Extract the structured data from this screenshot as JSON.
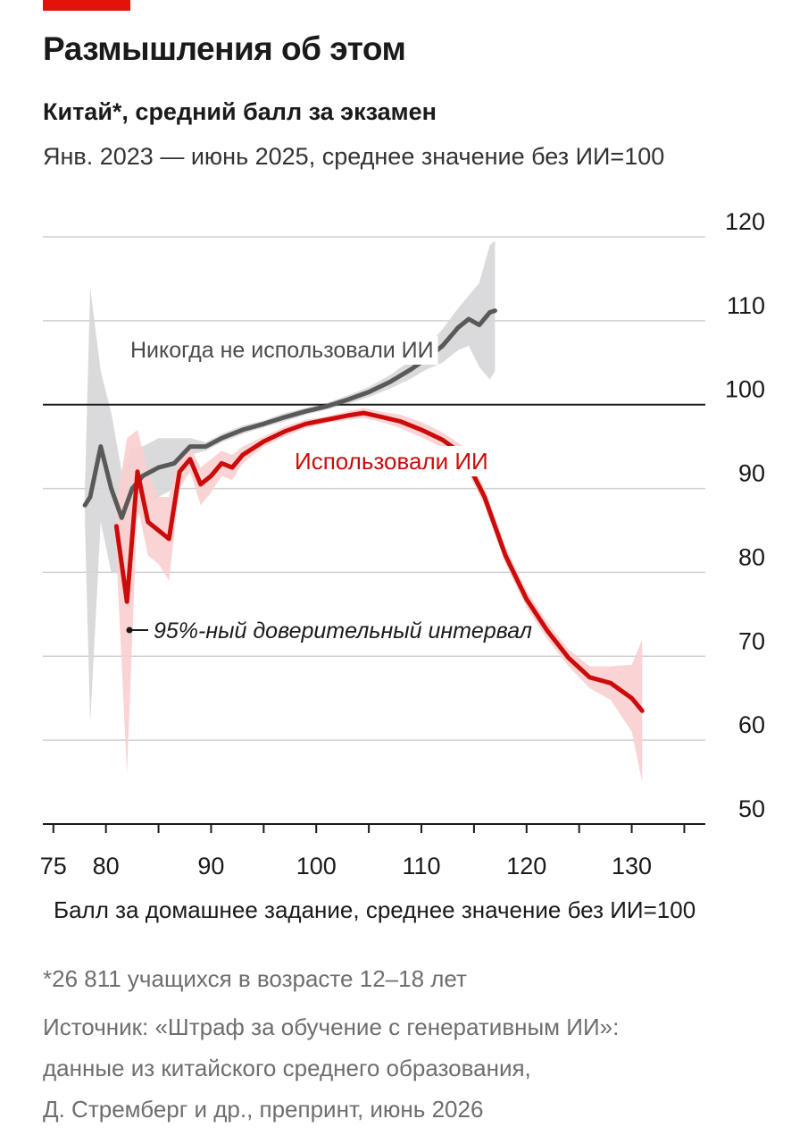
{
  "header": {
    "headline": "Размышления об этом",
    "accent_color": "#e3120b"
  },
  "chart_data": {
    "type": "line",
    "title": "Китай*, средний балл за экзамен",
    "subtitle": "Янв. 2023 — июнь 2025, среднее значение без ИИ=100",
    "xlabel": "Балл за домашнее задание, среднее значение без ИИ=100",
    "ylabel": "",
    "xlim": [
      74,
      137
    ],
    "ylim": [
      50,
      120
    ],
    "x_ticks": [
      75,
      80,
      90,
      100,
      110,
      120,
      130
    ],
    "x_minor_ticks": [
      75,
      80,
      85,
      90,
      95,
      100,
      105,
      110,
      115,
      120,
      125,
      130,
      135
    ],
    "y_ticks": [
      50,
      60,
      70,
      80,
      90,
      100,
      110,
      120
    ],
    "reference_line": 100,
    "grid": true,
    "legend": "inline labels",
    "band_label": "95%-ный доверительный интервал",
    "series": [
      {
        "name": "Никогда не использовали ИИ",
        "color": "#595959",
        "band_color": "#d6d6d8",
        "points": [
          [
            78,
            88
          ],
          [
            78.5,
            89
          ],
          [
            79.5,
            95
          ],
          [
            80.5,
            90
          ],
          [
            81.5,
            86.5
          ],
          [
            82.5,
            90
          ],
          [
            83.5,
            91.5
          ],
          [
            85,
            92.5
          ],
          [
            86.5,
            93
          ],
          [
            88,
            95
          ],
          [
            89.5,
            95
          ],
          [
            91,
            96
          ],
          [
            93,
            97
          ],
          [
            95,
            97.7
          ],
          [
            97,
            98.5
          ],
          [
            99,
            99.2
          ],
          [
            101,
            99.8
          ],
          [
            103,
            100.6
          ],
          [
            105,
            101.5
          ],
          [
            107,
            102.7
          ],
          [
            109,
            104.2
          ],
          [
            110.5,
            105.5
          ],
          [
            112,
            107
          ],
          [
            113.5,
            109.2
          ],
          [
            114.5,
            110.2
          ],
          [
            115.5,
            109.5
          ],
          [
            116.5,
            111
          ],
          [
            117,
            111.2
          ]
        ],
        "ci_lower": [
          86,
          62,
          86,
          80,
          80,
          85,
          88,
          89,
          90,
          94,
          94.5,
          95.5,
          96.5,
          97.3,
          98,
          98.8,
          99.4,
          100.1,
          100.9,
          101.9,
          103.1,
          104.2,
          105,
          106.5,
          107,
          104.5,
          103,
          104
        ],
        "ci_upper": [
          90,
          114,
          104,
          99,
          92,
          95,
          95,
          96,
          96,
          96,
          95.5,
          96.5,
          97.5,
          98.1,
          99,
          99.6,
          100.2,
          101.1,
          102.1,
          103.5,
          105.3,
          106.8,
          109,
          111.5,
          113,
          114.5,
          119,
          119.5
        ]
      },
      {
        "name": "Использовали ИИ",
        "color": "#cc0b0b",
        "band_color": "#f9cfcf",
        "points": [
          [
            81,
            85.5
          ],
          [
            82,
            76.5
          ],
          [
            83,
            92
          ],
          [
            84,
            86
          ],
          [
            85,
            85
          ],
          [
            86,
            84
          ],
          [
            87,
            92
          ],
          [
            88,
            93.5
          ],
          [
            89,
            90.5
          ],
          [
            90,
            91.5
          ],
          [
            91,
            93
          ],
          [
            92,
            92.5
          ],
          [
            93,
            94
          ],
          [
            95,
            95.6
          ],
          [
            97,
            96.8
          ],
          [
            99,
            97.7
          ],
          [
            101,
            98.2
          ],
          [
            103,
            98.7
          ],
          [
            104.5,
            99
          ],
          [
            106,
            98.6
          ],
          [
            108,
            98
          ],
          [
            110,
            97
          ],
          [
            112,
            95.8
          ],
          [
            114,
            94
          ],
          [
            116,
            89
          ],
          [
            118,
            82
          ],
          [
            120,
            76.8
          ],
          [
            122,
            73
          ],
          [
            124,
            69.8
          ],
          [
            126,
            67.5
          ],
          [
            128,
            66.8
          ],
          [
            130,
            65
          ],
          [
            131,
            63.5
          ]
        ],
        "ci_lower": [
          82,
          56,
          88,
          82,
          81,
          79,
          90,
          92,
          88,
          89.5,
          91.5,
          91,
          93,
          95,
          96.2,
          97.2,
          97.8,
          98.2,
          98.4,
          98,
          97.2,
          96.1,
          94.9,
          93,
          88,
          81,
          75.8,
          72,
          68.8,
          66.2,
          64.8,
          61,
          55
        ],
        "ci_upper": [
          88,
          96,
          97,
          92,
          89,
          89,
          94,
          95,
          92.5,
          93.5,
          94.5,
          94,
          95,
          96.2,
          97.4,
          98.2,
          98.6,
          99.2,
          99.6,
          99.2,
          98.8,
          97.9,
          96.7,
          95,
          90,
          83,
          77.8,
          74,
          70.8,
          68.8,
          68.8,
          69,
          72
        ]
      }
    ]
  },
  "footnotes": [
    "*26 811 учащихся в возрасте 12–18 лет",
    "Источник: «Штраф за обучение с генеративным ИИ»:",
    "данные из китайского среднего образования,",
    "Д. Стремберг и др., препринт, июнь 2026"
  ]
}
